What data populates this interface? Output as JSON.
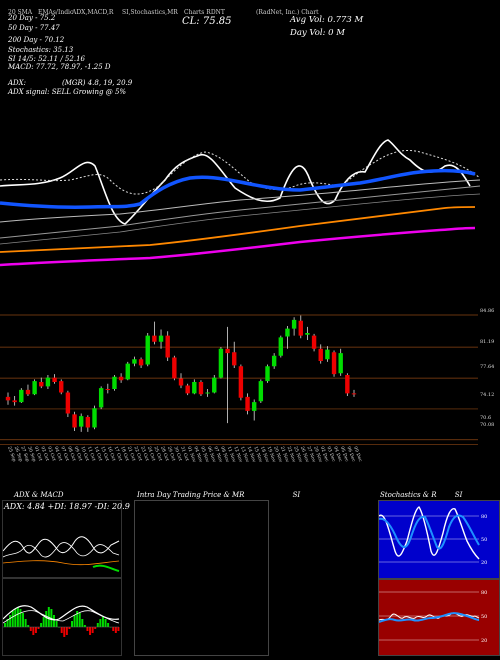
{
  "header": {
    "top_line": [
      "20 SMA",
      "EMAs/Indic",
      "ADX,MACD,R",
      "SI,Stochastics,MR",
      "",
      "Charts RDNT",
      "",
      "(RadNet, Inc.) Chart"
    ],
    "close_label": "CL: 75.85",
    "avg_vol_label": "Avg Vol: 0.773 M",
    "day_vol_label": "Day Vol: 0 M"
  },
  "indicators": {
    "sma20": "20 Day - 75.2",
    "sma50": "50 Day - 77.47",
    "sma200": "200 Day - 70.12",
    "stochastics": "Stochastics: 35.13",
    "si": "SI 14/5: 52.11 / 52.16",
    "macd": "MACD: 77.72, 78.97, -1.25 D",
    "adx": "ADX:",
    "adx_values": "(MGR) 4.8, 19, 20.9",
    "adx_signal": "ADX signal: SELL Growing @ 5%"
  },
  "price_levels": [
    "84.86",
    "81.19",
    "77.64",
    "74.12",
    "70.6",
    "70.08"
  ],
  "dates": [
    "25 Sep",
    "26 Sep",
    "27 Sep",
    "30 Sep",
    "01 Oct",
    "02 Oct",
    "03 Oct",
    "04 Oct",
    "07 Oct",
    "08 Oct",
    "09 Oct",
    "10 Oct",
    "11 Oct",
    "14 Oct",
    "15 Oct",
    "16 Oct",
    "17 Oct",
    "18 Oct",
    "21 Oct",
    "22 Oct",
    "23 Oct",
    "24 Oct",
    "25 Oct",
    "28 Oct",
    "29 Oct",
    "30 Oct",
    "31 Oct",
    "01 Nov",
    "04 Nov",
    "05 Nov",
    "06 Nov",
    "07 Nov",
    "08 Nov",
    "11 Nov",
    "12 Nov",
    "13 Nov",
    "14 Nov",
    "15 Nov",
    "18 Nov",
    "19 Nov",
    "20 Nov",
    "21 Nov",
    "22 Nov",
    "25 Nov",
    "26 Nov",
    "27 Nov",
    "29 Nov",
    "02 Dec",
    "03 Dec",
    "04 Dec",
    "05 Dec",
    "06 Dec",
    "09 Dec"
  ],
  "panels": {
    "adx_macd": {
      "title": "ADX & MACD",
      "adx_label": "ADX: 4.84",
      "plus_di": "+DI: 18.97",
      "minus_di": "-DI: 20.9"
    },
    "intraday": {
      "title": "Intra Day Trading Price & MR",
      "suffix": "SI"
    },
    "stoch_si": {
      "title": "Stochastics & R",
      "suffix": "SI",
      "stoch_ticks": [
        "80",
        "50",
        "20"
      ],
      "si_ticks": [
        "80",
        "50",
        "20"
      ]
    }
  },
  "colors": {
    "bull": "#00dd00",
    "bear": "#ee0000",
    "sma_blue": "#1155ff",
    "sma_orange": "#ff8800",
    "sma_magenta": "#ee00ee",
    "grid": "#8b4513"
  },
  "chart_data": {
    "type": "candlestick",
    "ylim": [
      70.0,
      86.0
    ],
    "candles": [
      [
        75.5,
        76.0,
        74.6,
        75.1
      ],
      [
        75.1,
        75.6,
        74.5,
        74.9
      ],
      [
        74.9,
        76.5,
        74.8,
        76.3
      ],
      [
        76.3,
        76.9,
        75.6,
        75.8
      ],
      [
        75.8,
        77.5,
        75.7,
        77.3
      ],
      [
        77.2,
        77.7,
        76.5,
        76.7
      ],
      [
        76.7,
        78.0,
        76.4,
        77.7
      ],
      [
        77.7,
        78.1,
        77.0,
        77.2
      ],
      [
        77.3,
        77.5,
        75.8,
        76.0
      ],
      [
        76.0,
        76.2,
        73.2,
        73.6
      ],
      [
        73.5,
        73.8,
        71.6,
        72.0
      ],
      [
        72.1,
        73.6,
        71.5,
        73.3
      ],
      [
        73.2,
        73.4,
        71.5,
        72.0
      ],
      [
        72.0,
        74.5,
        71.8,
        74.2
      ],
      [
        74.3,
        76.7,
        74.1,
        76.5
      ],
      [
        76.4,
        77.0,
        75.9,
        76.3
      ],
      [
        76.4,
        78.0,
        76.2,
        77.8
      ],
      [
        77.8,
        78.2,
        77.1,
        77.4
      ],
      [
        77.5,
        79.5,
        77.4,
        79.3
      ],
      [
        79.3,
        80.1,
        79.0,
        79.8
      ],
      [
        79.8,
        80.0,
        78.8,
        79.1
      ],
      [
        79.2,
        82.8,
        79.0,
        82.5
      ],
      [
        82.5,
        84.1,
        81.5,
        81.8
      ],
      [
        81.8,
        83.2,
        81.0,
        82.5
      ],
      [
        82.5,
        83.0,
        79.6,
        80.0
      ],
      [
        80.0,
        80.2,
        77.4,
        77.6
      ],
      [
        77.6,
        78.2,
        76.5,
        76.8
      ],
      [
        76.8,
        77.0,
        75.7,
        75.9
      ],
      [
        75.9,
        77.5,
        75.8,
        77.2
      ],
      [
        77.2,
        77.4,
        75.6,
        75.8
      ],
      [
        75.9,
        76.4,
        75.5,
        76.0
      ],
      [
        76.0,
        78.0,
        75.9,
        77.7
      ],
      [
        77.7,
        81.2,
        77.6,
        81.0
      ],
      [
        81.0,
        83.5,
        72.5,
        80.5
      ],
      [
        80.6,
        81.8,
        78.8,
        79.1
      ],
      [
        79.0,
        79.2,
        75.1,
        75.4
      ],
      [
        75.5,
        75.9,
        73.5,
        73.9
      ],
      [
        73.9,
        75.2,
        72.8,
        74.9
      ],
      [
        75.0,
        77.5,
        74.8,
        77.3
      ],
      [
        77.3,
        79.2,
        77.1,
        79.0
      ],
      [
        79.0,
        80.5,
        78.7,
        80.2
      ],
      [
        80.2,
        82.5,
        80.0,
        82.3
      ],
      [
        82.4,
        83.6,
        81.0,
        83.3
      ],
      [
        83.3,
        84.6,
        82.5,
        84.3
      ],
      [
        84.2,
        84.8,
        82.2,
        82.5
      ],
      [
        82.6,
        83.5,
        82.0,
        82.8
      ],
      [
        82.5,
        82.7,
        80.7,
        81.0
      ],
      [
        81.0,
        81.5,
        79.3,
        79.6
      ],
      [
        79.8,
        81.3,
        79.5,
        80.9
      ],
      [
        80.6,
        80.8,
        77.8,
        78.1
      ],
      [
        78.2,
        81.0,
        77.9,
        80.5
      ],
      [
        78.0,
        78.2,
        75.6,
        75.9
      ],
      [
        75.9,
        76.3,
        75.5,
        75.85
      ]
    ]
  }
}
